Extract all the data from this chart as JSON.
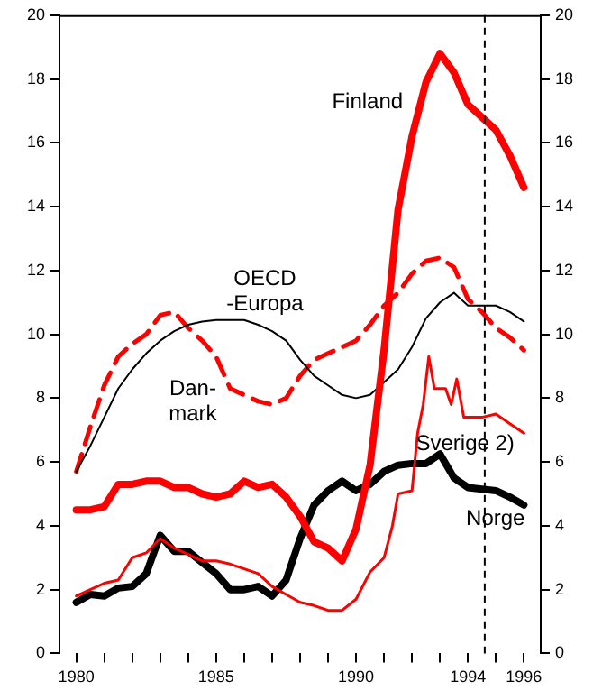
{
  "chart_data": {
    "type": "line",
    "x": [
      1980,
      1980.5,
      1981,
      1981.5,
      1982,
      1982.5,
      1983,
      1983.5,
      1984,
      1984.5,
      1985,
      1985.5,
      1986,
      1986.5,
      1987,
      1987.5,
      1988,
      1988.5,
      1989,
      1989.5,
      1990,
      1990.5,
      1991,
      1991.5,
      1992,
      1992.5,
      1993,
      1993.5,
      1994,
      1994.5,
      1995,
      1995.5,
      1996
    ],
    "series": [
      {
        "name": "Finland",
        "color": "#ff0000",
        "values": [
          4.5,
          4.5,
          4.6,
          5.3,
          5.3,
          5.4,
          5.4,
          5.2,
          5.2,
          5.0,
          4.9,
          5.0,
          5.4,
          5.2,
          5.3,
          4.9,
          4.3,
          3.5,
          3.3,
          2.9,
          3.9,
          5.9,
          9.5,
          13.9,
          16.2,
          17.9,
          18.8,
          18.2,
          17.2,
          16.8,
          16.4,
          15.6,
          14.6
        ]
      },
      {
        "name": "OECD\n-Europa",
        "color": "#000000",
        "values": [
          5.7,
          6.5,
          7.4,
          8.3,
          8.9,
          9.4,
          9.8,
          10.1,
          10.3,
          10.4,
          10.45,
          10.45,
          10.45,
          10.3,
          10.1,
          9.8,
          9.2,
          8.7,
          8.4,
          8.1,
          8.0,
          8.1,
          8.5,
          8.9,
          9.6,
          10.5,
          11.0,
          11.3,
          10.9,
          10.9,
          10.9,
          10.7,
          10.4
        ]
      },
      {
        "name": "Dan-\nmark",
        "color": "#ff0000",
        "line_style": "dashed",
        "values": [
          5.7,
          7.1,
          8.4,
          9.3,
          9.7,
          10.0,
          10.6,
          10.7,
          10.2,
          9.8,
          9.3,
          8.3,
          8.1,
          7.9,
          7.8,
          8.0,
          8.7,
          9.2,
          9.4,
          9.6,
          9.8,
          10.3,
          10.9,
          11.3,
          11.9,
          12.3,
          12.4,
          12.1,
          11.1,
          10.7,
          10.2,
          9.9,
          9.5
        ]
      },
      {
        "name": "Sverige 2)",
        "color": "#ff0000",
        "x": [
          1980,
          1980.5,
          1981,
          1981.5,
          1982,
          1982.5,
          1983,
          1983.5,
          1984,
          1984.5,
          1985,
          1985.5,
          1986,
          1986.5,
          1987,
          1987.5,
          1988,
          1988.5,
          1989,
          1989.5,
          1990,
          1990.5,
          1991,
          1991.3,
          1991.5,
          1992,
          1992.2,
          1992.4,
          1992.6,
          1992.8,
          1993.2,
          1993.4,
          1993.6,
          1993.85,
          1994.5,
          1995,
          1995.5,
          1996
        ],
        "values": [
          1.8,
          2.0,
          2.2,
          2.3,
          3.0,
          3.15,
          3.6,
          3.3,
          3.1,
          2.9,
          2.9,
          2.8,
          2.65,
          2.5,
          2.1,
          1.85,
          1.6,
          1.5,
          1.35,
          1.35,
          1.7,
          2.55,
          3.0,
          4.0,
          5.0,
          5.1,
          6.9,
          7.8,
          9.3,
          8.3,
          8.3,
          7.8,
          8.6,
          7.4,
          7.4,
          7.5,
          7.2,
          6.9
        ]
      },
      {
        "name": "Norge",
        "color": "#000000",
        "values": [
          1.6,
          1.85,
          1.8,
          2.05,
          2.1,
          2.5,
          3.7,
          3.2,
          3.2,
          2.85,
          2.5,
          2.0,
          2.0,
          2.1,
          1.8,
          2.3,
          3.6,
          4.65,
          5.1,
          5.4,
          5.1,
          5.3,
          5.7,
          5.9,
          5.95,
          5.95,
          6.25,
          5.5,
          5.2,
          5.15,
          5.1,
          4.9,
          4.65
        ]
      }
    ],
    "xlim": [
      1979.4,
      1996.6
    ],
    "xticks": [
      1980,
      {
        "value": 1981,
        "label": null
      },
      {
        "value": 1982,
        "label": null
      },
      {
        "value": 1983,
        "label": null
      },
      {
        "value": 1984,
        "label": null
      },
      1985,
      {
        "value": 1986,
        "label": null
      },
      {
        "value": 1987,
        "label": null
      },
      {
        "value": 1988,
        "label": null
      },
      {
        "value": 1989,
        "label": null
      },
      1990,
      {
        "value": 1991,
        "label": null
      },
      {
        "value": 1992,
        "label": null
      },
      {
        "value": 1993,
        "label": null
      },
      1994,
      {
        "value": 1995,
        "label": null
      },
      1996
    ],
    "ylim": [
      0,
      20
    ],
    "yticks": [
      0,
      2,
      4,
      6,
      8,
      10,
      12,
      14,
      16,
      18,
      20
    ],
    "y2lim": [
      0,
      20
    ],
    "y2ticks": [
      0,
      2,
      4,
      6,
      8,
      10,
      12,
      14,
      16,
      18,
      20
    ],
    "ref_lines": [
      {
        "axis": "x",
        "value": 1994.6,
        "color": "#000000",
        "line_style": "dashed"
      }
    ],
    "grid": false,
    "legend": false,
    "marker": "none"
  }
}
